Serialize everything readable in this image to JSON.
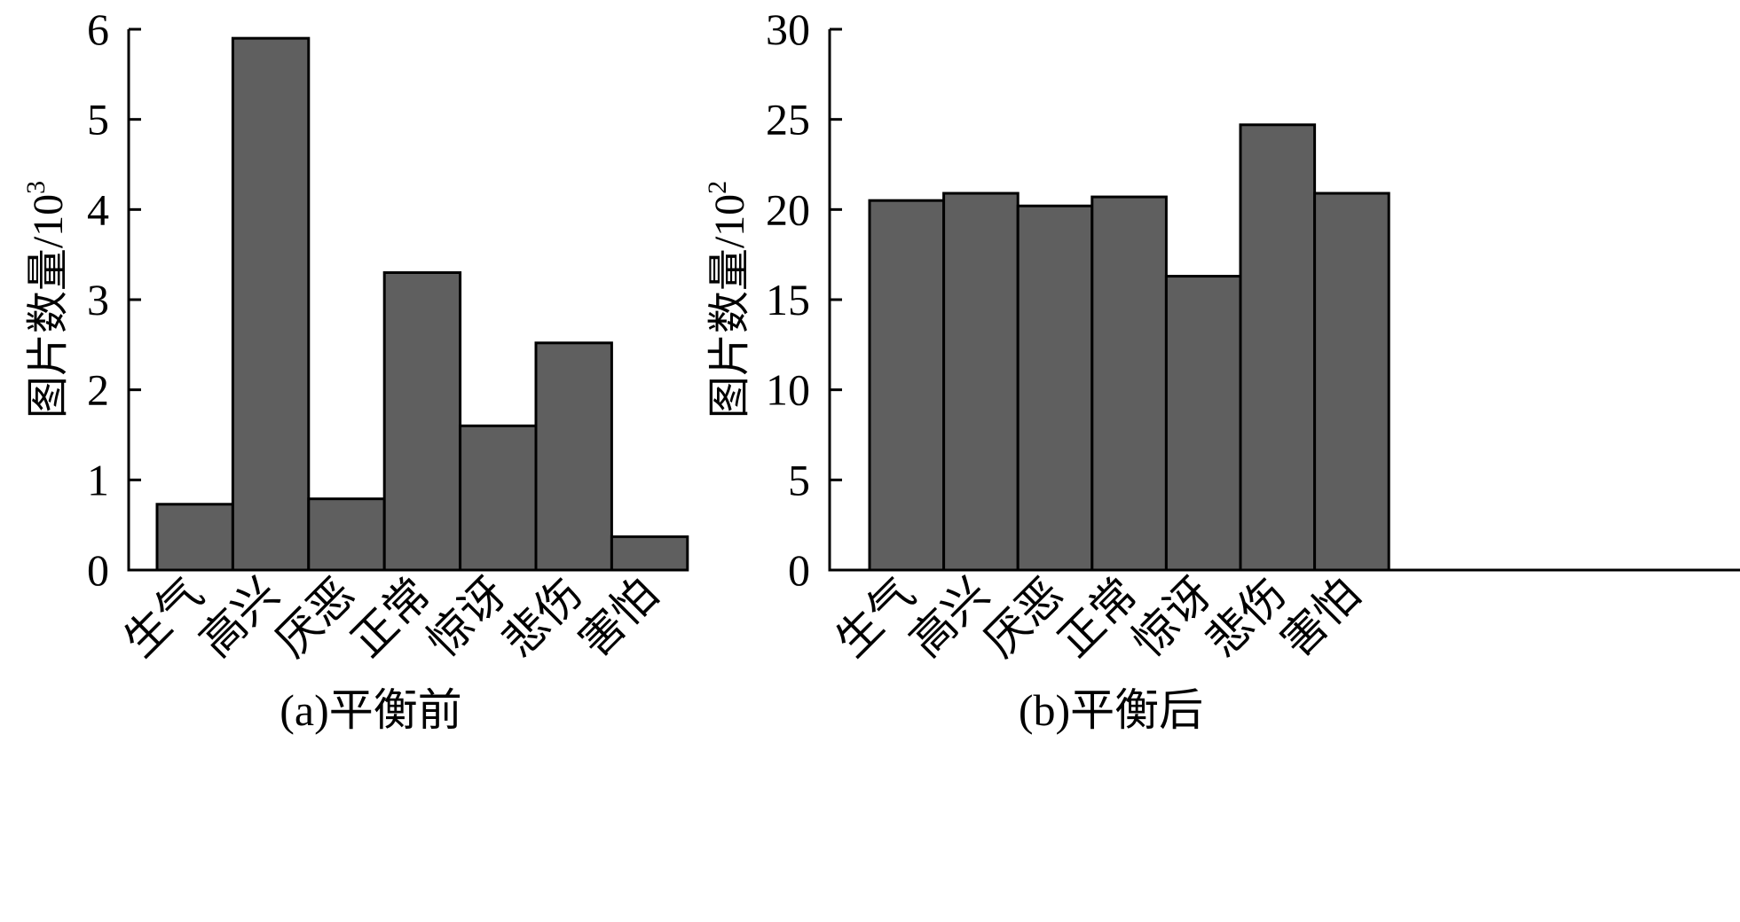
{
  "colors": {
    "bar_fill": "#5f5f5f",
    "bar_stroke": "#000000",
    "axis": "#000000"
  },
  "chart_data": [
    {
      "type": "bar",
      "categories": [
        "生气",
        "高兴",
        "厌恶",
        "正常",
        "惊讶",
        "悲伤",
        "害怕"
      ],
      "values": [
        0.73,
        5.9,
        0.79,
        3.3,
        1.6,
        2.52,
        0.37
      ],
      "ylabel": "图片数量/10",
      "ylabel_exponent": "3",
      "caption": "(a)平衡前",
      "ylim": [
        0,
        6
      ],
      "yticks": [
        0,
        1,
        2,
        3,
        4,
        5,
        6
      ],
      "grid": false,
      "legend": "none"
    },
    {
      "type": "bar",
      "categories": [
        "生气",
        "高兴",
        "厌恶",
        "正常",
        "惊讶",
        "悲伤",
        "害怕"
      ],
      "values": [
        20.5,
        20.9,
        20.2,
        20.7,
        16.3,
        24.7,
        20.9
      ],
      "ylabel": "图片数量/10",
      "ylabel_exponent": "2",
      "caption": "(b)平衡后",
      "ylim": [
        0,
        30
      ],
      "yticks": [
        0,
        5,
        10,
        15,
        20,
        25,
        30
      ],
      "grid": false,
      "legend": "none"
    }
  ]
}
